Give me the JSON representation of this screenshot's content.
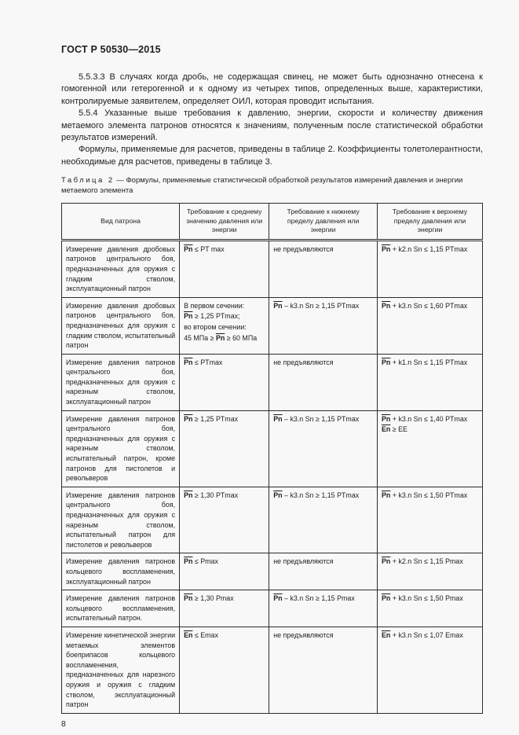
{
  "colors": {
    "text": "#1e1e20",
    "border": "#2b2b2b",
    "background": "#f8f8f9"
  },
  "page": {
    "header": "ГОСТ Р 50530—2015",
    "page_number": "8",
    "paragraphs": [
      "5.5.3.3 В случаях когда дробь, не содержащая свинец, не может быть однозначно отнесена к гомогенной или гетерогенной и к одному из четырех типов, определенных выше, характеристики, контролируемые заявителем, определяет ОИЛ, которая проводит испытания.",
      "5.5.4 Указанные выше требования к давлению, энергии, скорости и количеству движения метаемого элемента патронов относятся к значениям, полученным после статистической обработки результатов измерений.",
      "Формулы, применяемые для расчетов, приведены в таблице 2. Коэффициенты толетолерантности, необходимые для расчетов, приведены в таблице 3."
    ]
  },
  "table": {
    "label": "Таблица 2",
    "title_rest": " — Формулы, применяемые статистической обработкой результатов измерений давления и энергии метаемого элемента",
    "columns": [
      "Вид патрона",
      "Требование к среднему значению давления или энергии",
      "Требование к нижнему пределу давления или энергии",
      "Требование к верхнему пределу давления или энергии"
    ],
    "rows": [
      {
        "kind": "Измерение давления дробовых патронов центрального боя, предназначенных для оружия с гладким стволом, эксплуатационный патрон",
        "mean": [
          [
            {
              "s": "Pn"
            },
            {
              "t": " ≤ PT max"
            }
          ]
        ],
        "lower": [
          [
            {
              "t": "не предъявляются"
            }
          ]
        ],
        "upper": [
          [
            {
              "s": "Pn"
            },
            {
              "t": " + k2.n Sn ≤ 1,15 PTmax"
            }
          ]
        ]
      },
      {
        "kind": "Измерение давления дробовых патронов центрального боя, предназначенных для оружия с гладким стволом, испытательный патрон",
        "mean": [
          [
            {
              "t": "В первом сечении:"
            }
          ],
          [
            {
              "s": "Pn"
            },
            {
              "t": " ≥ 1,25 PTmax;"
            }
          ],
          [
            {
              "t": "во втором сечении:"
            }
          ],
          [
            {
              "t": "45 МПа ≥ "
            },
            {
              "s": "Pn"
            },
            {
              "t": " ≥ 60 МПа"
            }
          ]
        ],
        "lower": [
          [
            {
              "s": "Pn"
            },
            {
              "t": " – k3.n Sn ≥ 1,15 PTmax"
            }
          ]
        ],
        "upper": [
          [
            {
              "s": "Pn"
            },
            {
              "t": " + k3.n Sn ≤ 1,60 PTmax"
            }
          ]
        ]
      },
      {
        "kind": "Измерение давления патронов центрального боя, предназначенных для оружия с нарезным стволом, эксплуатационный патрон",
        "mean": [
          [
            {
              "s": "Pn"
            },
            {
              "t": " ≤ PTmax"
            }
          ]
        ],
        "lower": [
          [
            {
              "t": "не предъявляются"
            }
          ]
        ],
        "upper": [
          [
            {
              "s": "Pn"
            },
            {
              "t": " + k1.n Sn ≤ 1,15 PTmax"
            }
          ]
        ]
      },
      {
        "kind": "Измерение давления патронов центрального боя, предназначенных для оружия с нарезным стволом, испытательный патрон, кроме патронов для пистолетов и револьверов",
        "mean": [
          [
            {
              "s": "Pn"
            },
            {
              "t": " ≥ 1,25 PTmax"
            }
          ]
        ],
        "lower": [
          [
            {
              "s": "Pn"
            },
            {
              "t": " – k3.n Sn ≥ 1,15 PTmax"
            }
          ]
        ],
        "upper": [
          [
            {
              "s": "Pn"
            },
            {
              "t": " + k3.n Sn ≤ 1,40 PTmax"
            }
          ],
          [
            {
              "s": "En"
            },
            {
              "t": " ≥ EE"
            }
          ]
        ]
      },
      {
        "kind": "Измерение давления патронов центрального боя, предназначенных для оружия с нарезным стволом, испытательный патрон для пистолетов и револьверов",
        "mean": [
          [
            {
              "s": "Pn"
            },
            {
              "t": " ≥ 1,30 PTmax"
            }
          ]
        ],
        "lower": [
          [
            {
              "s": "Pn"
            },
            {
              "t": " – k3.n Sn ≥ 1,15 PTmax"
            }
          ]
        ],
        "upper": [
          [
            {
              "s": "Pn"
            },
            {
              "t": " + k3.n Sn ≤ 1,50 PTmax"
            }
          ]
        ]
      },
      {
        "kind": "Измерение давления патронов кольцевого воспламенения, эксплуатационный патрон",
        "mean": [
          [
            {
              "s": "Pn"
            },
            {
              "t": " ≤ Pmax"
            }
          ]
        ],
        "lower": [
          [
            {
              "t": "не предъявляются"
            }
          ]
        ],
        "upper": [
          [
            {
              "s": "Pn"
            },
            {
              "t": " + k2.n Sn ≤ 1,15 Pmax"
            }
          ]
        ]
      },
      {
        "kind": "Измерение давления патронов кольцевого воспламенения, испытательный патрон.",
        "mean": [
          [
            {
              "s": "Pn"
            },
            {
              "t": " ≥ 1,30 Pmax"
            }
          ]
        ],
        "lower": [
          [
            {
              "s": "Pn"
            },
            {
              "t": " – k3.n Sn ≥ 1,15 Pmax"
            }
          ]
        ],
        "upper": [
          [
            {
              "s": "Pn"
            },
            {
              "t": " + k3.n Sn ≤ 1,50 Pmax"
            }
          ]
        ]
      },
      {
        "kind": "Измерение кинетической энергии метаемых элементов боеприпасов кольцевого воспламенения, предназначенных для нарезного оружия и оружия с гладким стволом, эксплуатационный патрон",
        "mean": [
          [
            {
              "s": "En"
            },
            {
              "t": " ≤ Emax"
            }
          ]
        ],
        "lower": [
          [
            {
              "t": "не предъявляются"
            }
          ]
        ],
        "upper": [
          [
            {
              "s": "En"
            },
            {
              "t": " + k3.n Sn ≤ 1,07 Emax"
            }
          ]
        ]
      }
    ]
  }
}
